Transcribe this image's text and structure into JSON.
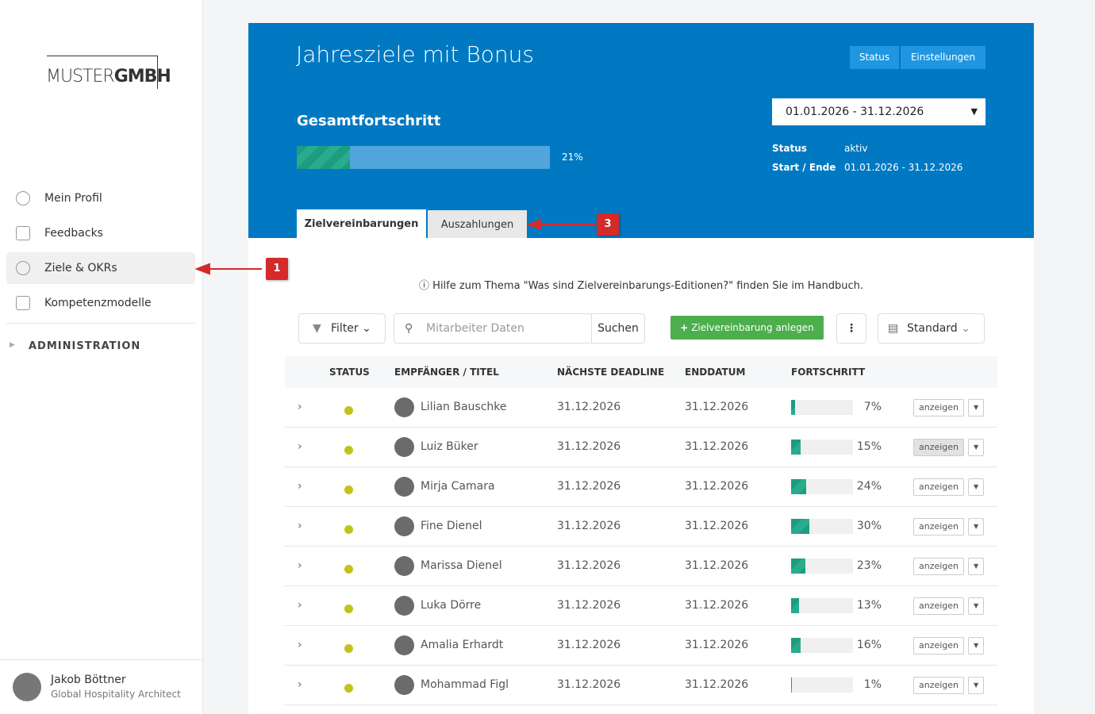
{
  "sidebar": {
    "logo": {
      "left": "MUSTER",
      "right": "GMBH"
    },
    "nav": [
      "Mein Profil",
      "Feedbacks",
      "Ziele & OKRs",
      "Kompetenzmodelle"
    ],
    "admin": "ADMINISTRATION",
    "user": {
      "name": "Jakob Böttner",
      "role": "Global Hospitality Architect"
    }
  },
  "header": {
    "title": "Jahresziele mit Bonus",
    "buttons": [
      "Status",
      "Einstellungen"
    ],
    "period_select": "01.01.2026 - 31.12.2026",
    "progress_title": "Gesamtfortschritt",
    "progress": 21,
    "progress_label": "21%",
    "meta": [
      {
        "key": "Status",
        "value": "aktiv"
      },
      {
        "key": "Start / Ende",
        "value": "01.01.2026 - 31.12.2026"
      }
    ],
    "tabs": [
      "Zielvereinbarungen",
      "Auszahlungen"
    ]
  },
  "annotations": [
    "1",
    "3"
  ],
  "help": "Hilfe zum Thema \"Was sind Zielvereinbarungs-Editionen?\" finden Sie im Handbuch.",
  "toolbar": {
    "filter": "Filter",
    "search_placeholder": "Mitarbeiter Daten",
    "search_button": "Suchen",
    "create": "Zielvereinbarung anlegen",
    "view": "Standard"
  },
  "table": {
    "columns": [
      "STATUS",
      "EMPFÄNGER / TITEL",
      "NÄCHSTE DEADLINE",
      "ENDDATUM",
      "FORTSCHRITT"
    ],
    "rows": [
      {
        "name": "Lilian Bauschke",
        "deadline": "31.12.2026",
        "end": "31.12.2026",
        "progress": 7,
        "progress_label": "7%",
        "action": "anzeigen"
      },
      {
        "name": "Luiz Büker",
        "deadline": "31.12.2026",
        "end": "31.12.2026",
        "progress": 15,
        "progress_label": "15%",
        "action": "anzeigen"
      },
      {
        "name": "Mirja Camara",
        "deadline": "31.12.2026",
        "end": "31.12.2026",
        "progress": 24,
        "progress_label": "24%",
        "action": "anzeigen"
      },
      {
        "name": "Fine Dienel",
        "deadline": "31.12.2026",
        "end": "31.12.2026",
        "progress": 30,
        "progress_label": "30%",
        "action": "anzeigen"
      },
      {
        "name": "Marissa Dienel",
        "deadline": "31.12.2026",
        "end": "31.12.2026",
        "progress": 23,
        "progress_label": "23%",
        "action": "anzeigen"
      },
      {
        "name": "Luka Dörre",
        "deadline": "31.12.2026",
        "end": "31.12.2026",
        "progress": 13,
        "progress_label": "13%",
        "action": "anzeigen"
      },
      {
        "name": "Amalia Erhardt",
        "deadline": "31.12.2026",
        "end": "31.12.2026",
        "progress": 16,
        "progress_label": "16%",
        "action": "anzeigen"
      },
      {
        "name": "Mohammad Figl",
        "deadline": "31.12.2026",
        "end": "31.12.2026",
        "progress": 1,
        "progress_label": "1%",
        "action": "anzeigen"
      }
    ]
  }
}
